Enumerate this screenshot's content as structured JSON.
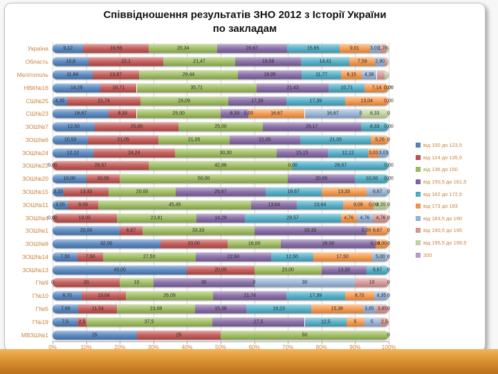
{
  "slide": {
    "title_line1": "Співвідношення результатів ЗНО 2012 з Історії України",
    "title_line2": "по закладам"
  },
  "chart_data": {
    "type": "bar",
    "variant": "horizontal-100pct-stacked",
    "title": "Співвідношення результатів ЗНО 2012 з Історії України по закладам",
    "xlabel": "",
    "ylabel": "",
    "x_range": [
      0,
      100
    ],
    "grid": true,
    "legend_position": "right",
    "x_ticks": [
      "0%",
      "10%",
      "20%",
      "30%",
      "40%",
      "50%",
      "60%",
      "70%",
      "80%",
      "90%",
      "100%"
    ],
    "series_names": [
      "від 100 до 123,5",
      "від 124 до 135,5",
      "від 136 до 150",
      "від 150,5 до 161,5",
      "від 162 до 172,5",
      "від 173 до 183",
      "від 183,5 до 190",
      "від 190,5 до 195",
      "від 195,5 до 199,5",
      "200"
    ],
    "series_colors": [
      "#4F81BD",
      "#C0504D",
      "#9BBB59",
      "#8064A2",
      "#4BACC6",
      "#F79646",
      "#95B3D7",
      "#D99694",
      "#C3D69B",
      "#B3A2C7"
    ],
    "legend": [
      {
        "label": "від 100 до 123,5",
        "color": "#4F81BD"
      },
      {
        "label": "від 124 до 135,5",
        "color": "#C0504D"
      },
      {
        "label": "від 136 до 150",
        "color": "#9BBB59"
      },
      {
        "label": "від 150,5 до 161,5",
        "color": "#8064A2"
      },
      {
        "label": "від 162 до 172,5",
        "color": "#4BACC6"
      },
      {
        "label": "від 173 до 183",
        "color": "#F79646"
      },
      {
        "label": "від 183,5 до 190",
        "color": "#95B3D7"
      },
      {
        "label": "від 190,5 до 195",
        "color": "#D99694"
      },
      {
        "label": "від 195,5 до 199,5",
        "color": "#C3D69B"
      },
      {
        "label": "200",
        "color": "#B3A2C7"
      }
    ],
    "rows": [
      {
        "category": "Україна",
        "segments": [
          [
            9.12,
            "9,12"
          ],
          [
            19.56,
            "19,56"
          ],
          [
            20.34,
            "20,34"
          ],
          [
            20.67,
            "20,67"
          ],
          [
            15.65,
            "15,65"
          ],
          [
            9.01,
            "9,01"
          ],
          [
            3.01,
            "3,01"
          ],
          [
            1.78,
            "1,78"
          ],
          [
            0.74,
            ""
          ],
          [
            0.12,
            ""
          ]
        ]
      },
      {
        "category": "Область",
        "segments": [
          [
            10.8,
            "10,8"
          ],
          [
            22.1,
            "22,1"
          ],
          [
            21.47,
            "21,47"
          ],
          [
            19.58,
            "19,58"
          ],
          [
            14.41,
            "14,41"
          ],
          [
            7.59,
            "7,59"
          ],
          [
            2.9,
            "2,90"
          ],
          [
            0.77,
            ""
          ],
          [
            0.38,
            ""
          ],
          [
            0,
            ""
          ]
        ]
      },
      {
        "category": "Мелітополь",
        "segments": [
          [
            11.84,
            "11,84"
          ],
          [
            13.87,
            "13,87"
          ],
          [
            29.44,
            "29,44"
          ],
          [
            18.95,
            "18,95"
          ],
          [
            11.77,
            "11,77"
          ],
          [
            6.15,
            "6,15"
          ],
          [
            4.38,
            "4,38"
          ],
          [
            2.31,
            ""
          ],
          [
            1.04,
            ""
          ],
          [
            0.25,
            ""
          ]
        ]
      },
      {
        "category": "НВК№16",
        "segments": [
          [
            14.29,
            "14,29"
          ],
          [
            10.71,
            "10,71"
          ],
          [
            35.71,
            "35,71"
          ],
          [
            21.43,
            "21,43"
          ],
          [
            10.71,
            "10,71"
          ],
          [
            7.14,
            "7,14"
          ],
          [
            0,
            "0,00"
          ],
          [
            0,
            "0,00"
          ],
          [
            0,
            ""
          ],
          [
            0,
            ""
          ]
        ]
      },
      {
        "category": "СШ№25",
        "segments": [
          [
            4.35,
            "4,35"
          ],
          [
            21.74,
            "21,74"
          ],
          [
            26.09,
            "26,09"
          ],
          [
            17.39,
            "17,39"
          ],
          [
            17.39,
            "17,39"
          ],
          [
            13.04,
            "13,04"
          ],
          [
            0,
            "0,00"
          ],
          [
            0,
            ""
          ],
          [
            0,
            ""
          ],
          [
            0,
            ""
          ]
        ]
      },
      {
        "category": "СШ№23",
        "segments": [
          [
            16.67,
            "16,67"
          ],
          [
            8.33,
            "8,33"
          ],
          [
            25,
            "25,00"
          ],
          [
            8.33,
            "8,33"
          ],
          [
            0,
            "0,00"
          ],
          [
            16.67,
            "16,67"
          ],
          [
            16.67,
            "16,67"
          ],
          [
            0,
            "0"
          ],
          [
            8.33,
            "8,33"
          ],
          [
            0,
            "0"
          ]
        ]
      },
      {
        "category": "ЗОШ№7",
        "segments": [
          [
            12.5,
            "12,50"
          ],
          [
            25,
            "25,00"
          ],
          [
            25,
            "25,00"
          ],
          [
            29.17,
            "29,17"
          ],
          [
            8.33,
            "8,33"
          ],
          [
            0,
            "0,00"
          ],
          [
            0,
            ""
          ],
          [
            0,
            ""
          ],
          [
            0,
            ""
          ],
          [
            0,
            ""
          ]
        ]
      },
      {
        "category": "ЗОШ№6",
        "segments": [
          [
            10.53,
            "10,53"
          ],
          [
            21.05,
            "21,05"
          ],
          [
            21.05,
            "21,05"
          ],
          [
            21.05,
            "21,05"
          ],
          [
            21.05,
            "21,05"
          ],
          [
            5.26,
            "5,26"
          ],
          [
            0,
            "0"
          ],
          [
            0,
            ""
          ],
          [
            0,
            ""
          ],
          [
            0,
            ""
          ]
        ]
      },
      {
        "category": "ЗОШ№24",
        "segments": [
          [
            12.12,
            "12,12"
          ],
          [
            24.24,
            "24,24"
          ],
          [
            30.3,
            "30,30"
          ],
          [
            15.15,
            "15,15"
          ],
          [
            12.12,
            "12,12"
          ],
          [
            3.03,
            "3,03"
          ],
          [
            3.03,
            "3,03"
          ],
          [
            0,
            ""
          ],
          [
            0,
            ""
          ],
          [
            0,
            ""
          ]
        ]
      },
      {
        "category": "ЗОШ№22",
        "segments": [
          [
            0,
            "0,00"
          ],
          [
            28.57,
            "28,57"
          ],
          [
            42.86,
            "42,86"
          ],
          [
            0,
            "0,00"
          ],
          [
            28.57,
            "28,57"
          ],
          [
            0,
            "0,00"
          ],
          [
            0,
            ""
          ],
          [
            0,
            ""
          ],
          [
            0,
            ""
          ],
          [
            0,
            ""
          ]
        ]
      },
      {
        "category": "ЗОШ№20",
        "segments": [
          [
            10,
            "10,00"
          ],
          [
            10,
            "10,00"
          ],
          [
            50,
            "50,00"
          ],
          [
            20,
            "20,00"
          ],
          [
            10,
            "10,00"
          ],
          [
            0,
            "0,00"
          ],
          [
            0,
            ""
          ],
          [
            0,
            ""
          ],
          [
            0,
            ""
          ],
          [
            0,
            ""
          ]
        ]
      },
      {
        "category": "ЗОШ№15",
        "segments": [
          [
            3.33,
            "3,33"
          ],
          [
            13.33,
            "13,33"
          ],
          [
            20,
            "20,00"
          ],
          [
            26.67,
            "26,67"
          ],
          [
            16.67,
            "16,67"
          ],
          [
            13.33,
            "13,33"
          ],
          [
            6.67,
            "6,67"
          ],
          [
            0,
            "0"
          ],
          [
            0,
            ""
          ],
          [
            0,
            ""
          ]
        ]
      },
      {
        "category": "ЗОШ№11",
        "segments": [
          [
            4.55,
            "4,55"
          ],
          [
            9.09,
            "9,09"
          ],
          [
            45.45,
            "45,45"
          ],
          [
            13.64,
            "13,64"
          ],
          [
            13.64,
            "13,64"
          ],
          [
            9.09,
            "9,09"
          ],
          [
            0,
            "0,00"
          ],
          [
            0,
            ""
          ],
          [
            4.55,
            "4,55"
          ],
          [
            0,
            "0"
          ]
        ]
      },
      {
        "category": "ЗОШ№4",
        "segments": [
          [
            0,
            "0,00"
          ],
          [
            19.05,
            "19,05"
          ],
          [
            23.81,
            "23,81"
          ],
          [
            14.29,
            "14,29"
          ],
          [
            28.57,
            "28,57"
          ],
          [
            4.76,
            "4,76"
          ],
          [
            4.76,
            "4,76"
          ],
          [
            4.76,
            "4,76"
          ],
          [
            0,
            "0"
          ],
          [
            0,
            ""
          ]
        ]
      },
      {
        "category": "ЗОШ№1",
        "segments": [
          [
            20,
            "20,00"
          ],
          [
            6.67,
            "6,67"
          ],
          [
            33.33,
            "33,33"
          ],
          [
            33.33,
            "33,33"
          ],
          [
            0,
            "0,00"
          ],
          [
            6.67,
            "6,67"
          ],
          [
            0,
            "0"
          ],
          [
            0,
            ""
          ],
          [
            0,
            ""
          ],
          [
            0,
            ""
          ]
        ]
      },
      {
        "category": "ЗОШ№8",
        "segments": [
          [
            32,
            "32,00"
          ],
          [
            20,
            "20,00"
          ],
          [
            16,
            "16,00"
          ],
          [
            28,
            "28,00"
          ],
          [
            0,
            "0,00"
          ],
          [
            4,
            "4,00"
          ],
          [
            0,
            "0"
          ],
          [
            0,
            ""
          ],
          [
            0,
            ""
          ],
          [
            0,
            ""
          ]
        ]
      },
      {
        "category": "ЗОШ№14",
        "segments": [
          [
            7.5,
            "7,50"
          ],
          [
            7.5,
            "7,50"
          ],
          [
            27.5,
            "27,50"
          ],
          [
            22.5,
            "22,50"
          ],
          [
            12.5,
            "12,50"
          ],
          [
            17.5,
            "17,50"
          ],
          [
            5,
            "5,00"
          ],
          [
            0,
            "0"
          ],
          [
            0,
            ""
          ],
          [
            0,
            ""
          ]
        ]
      },
      {
        "category": "ЗОШ№13",
        "segments": [
          [
            40,
            "40,00"
          ],
          [
            20,
            "20,00"
          ],
          [
            20,
            "20,00"
          ],
          [
            13.33,
            "13,33"
          ],
          [
            6.67,
            "6,67"
          ],
          [
            0,
            "0"
          ],
          [
            0,
            ""
          ],
          [
            0,
            ""
          ],
          [
            0,
            ""
          ],
          [
            0,
            ""
          ]
        ]
      },
      {
        "category": "Г№9",
        "segments": [
          [
            0,
            "0"
          ],
          [
            20,
            "20"
          ],
          [
            10,
            "10"
          ],
          [
            30,
            "30"
          ],
          [
            0,
            "0"
          ],
          [
            0,
            ""
          ],
          [
            30,
            "30"
          ],
          [
            10,
            "10"
          ],
          [
            0,
            "0"
          ],
          [
            0,
            ""
          ]
        ]
      },
      {
        "category": "Г№10",
        "segments": [
          [
            8.7,
            "8,70"
          ],
          [
            13.04,
            "13,04"
          ],
          [
            26.09,
            "26,09"
          ],
          [
            21.74,
            "21,74"
          ],
          [
            17.39,
            "17,39"
          ],
          [
            8.7,
            "8,70"
          ],
          [
            4.35,
            "4,35"
          ],
          [
            0,
            "0"
          ],
          [
            0,
            ""
          ],
          [
            0,
            ""
          ]
        ]
      },
      {
        "category": "Г№5",
        "segments": [
          [
            7.69,
            "7,69"
          ],
          [
            11.54,
            "11,54"
          ],
          [
            23.08,
            "23,08"
          ],
          [
            15.38,
            "15,38"
          ],
          [
            19.23,
            "19,23"
          ],
          [
            15.38,
            "15,38"
          ],
          [
            3.85,
            "3,85"
          ],
          [
            3.85,
            "3,85"
          ],
          [
            0,
            "0"
          ],
          [
            0,
            ""
          ]
        ]
      },
      {
        "category": "Г№19",
        "segments": [
          [
            7.5,
            "7,5"
          ],
          [
            2.5,
            "2,5"
          ],
          [
            37.5,
            "37,5"
          ],
          [
            27.5,
            "27,5"
          ],
          [
            12.5,
            "12,5"
          ],
          [
            5,
            "5"
          ],
          [
            5,
            "5"
          ],
          [
            2.5,
            "2,5"
          ],
          [
            0,
            ""
          ],
          [
            0,
            ""
          ]
        ]
      },
      {
        "category": "МВЗШ№1",
        "segments": [
          [
            25,
            "25"
          ],
          [
            25,
            "25"
          ],
          [
            50,
            "50"
          ],
          [
            0,
            "0"
          ],
          [
            0,
            ""
          ],
          [
            0,
            ""
          ],
          [
            0,
            ""
          ],
          [
            0,
            ""
          ],
          [
            0,
            ""
          ],
          [
            0,
            ""
          ]
        ]
      }
    ]
  }
}
